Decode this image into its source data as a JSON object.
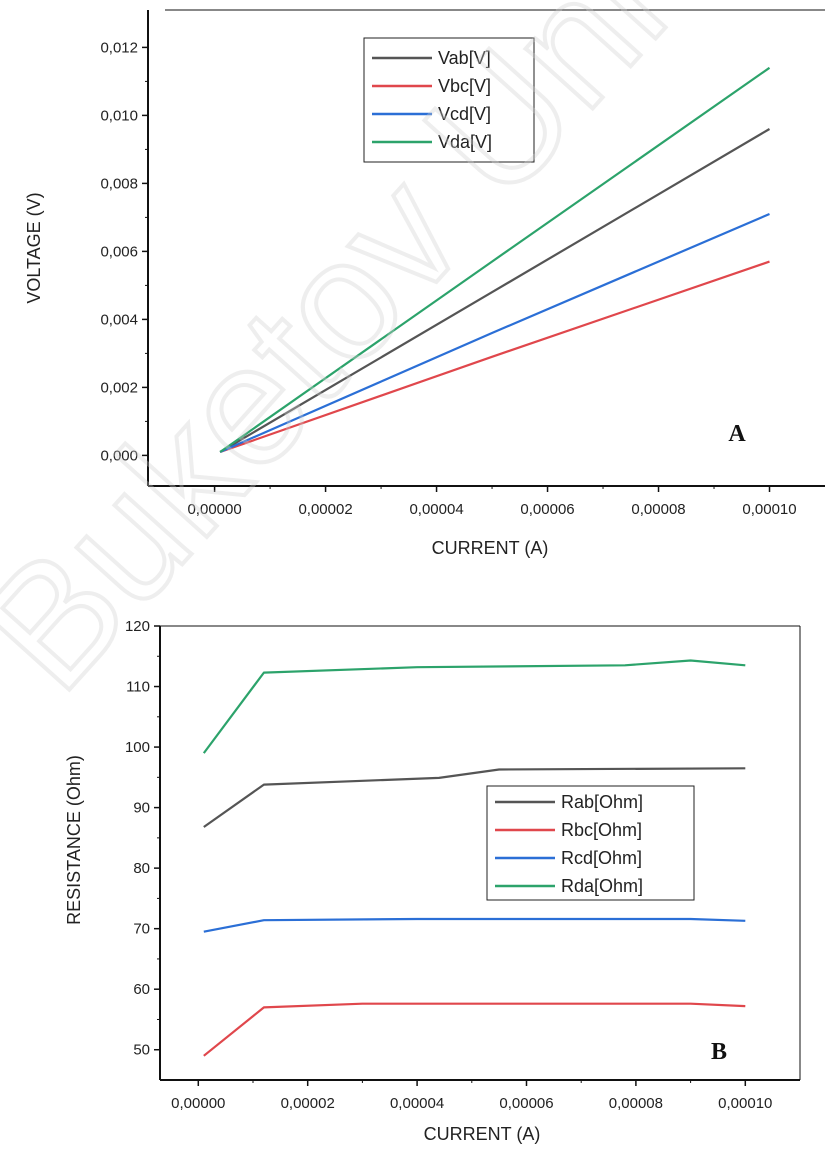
{
  "watermark": "Buketov Univer",
  "chart_data": [
    {
      "panel": "A",
      "type": "line",
      "xlabel": "CURRENT (A)",
      "ylabel": "VOLTAGE (V)",
      "xlim": [
        -1.2e-05,
        0.00011
      ],
      "ylim": [
        -0.0009,
        0.0131
      ],
      "xticks": [
        0.0,
        2e-05,
        4e-05,
        6e-05,
        8e-05,
        0.0001
      ],
      "xtick_labels": [
        "0,00000",
        "0,00002",
        "0,00004",
        "0,00006",
        "0,00008",
        "0,00010"
      ],
      "yticks": [
        0.0,
        0.002,
        0.004,
        0.006,
        0.008,
        0.01,
        0.012
      ],
      "ytick_labels": [
        "0,000",
        "0,002",
        "0,004",
        "0,006",
        "0,008",
        "0,010",
        "0,012"
      ],
      "legend_position": "top-center",
      "grid": false,
      "series": [
        {
          "name": "Vab[V]",
          "color": "#555555",
          "x": [
            1e-06,
            5e-05,
            0.0001
          ],
          "y": [
            0.0001,
            0.0048,
            0.0096
          ]
        },
        {
          "name": "Vbc[V]",
          "color": "#e0474c",
          "x": [
            1e-06,
            5e-05,
            0.0001
          ],
          "y": [
            0.0001,
            0.0029,
            0.0057
          ]
        },
        {
          "name": "Vcd[V]",
          "color": "#2b6fd6",
          "x": [
            1e-06,
            5e-05,
            0.0001
          ],
          "y": [
            0.0001,
            0.0036,
            0.0071
          ]
        },
        {
          "name": "Vda[V]",
          "color": "#2ca36b",
          "x": [
            1e-06,
            5e-05,
            0.0001
          ],
          "y": [
            0.0001,
            0.0057,
            0.0114
          ]
        }
      ]
    },
    {
      "panel": "B",
      "type": "line",
      "xlabel": "CURRENT (A)",
      "ylabel": "RESISTANCE (Ohm)",
      "xlim": [
        -7e-06,
        0.00011
      ],
      "ylim": [
        45,
        120
      ],
      "xticks": [
        0.0,
        2e-05,
        4e-05,
        6e-05,
        8e-05,
        0.0001
      ],
      "xtick_labels": [
        "0,00000",
        "0,00002",
        "0,00004",
        "0,00006",
        "0,00008",
        "0,00010"
      ],
      "yticks": [
        50,
        60,
        70,
        80,
        90,
        100,
        110,
        120
      ],
      "ytick_labels": [
        "50",
        "60",
        "70",
        "80",
        "90",
        "100",
        "110",
        "120"
      ],
      "legend_position": "center-right",
      "grid": false,
      "series": [
        {
          "name": "Rab[Ohm]",
          "color": "#555555",
          "x": [
            1e-06,
            1.2e-05,
            4.4e-05,
            5.5e-05,
            0.0001
          ],
          "y": [
            86.8,
            93.8,
            94.9,
            96.3,
            96.5
          ]
        },
        {
          "name": "Rbc[Ohm]",
          "color": "#e0474c",
          "x": [
            1e-06,
            1.2e-05,
            3e-05,
            9e-05,
            0.0001
          ],
          "y": [
            49.0,
            57.0,
            57.6,
            57.6,
            57.2
          ]
        },
        {
          "name": "Rcd[Ohm]",
          "color": "#2b6fd6",
          "x": [
            1e-06,
            1.2e-05,
            4e-05,
            9e-05,
            0.0001
          ],
          "y": [
            69.5,
            71.4,
            71.6,
            71.6,
            71.3
          ]
        },
        {
          "name": "Rda[Ohm]",
          "color": "#2ca36b",
          "x": [
            1e-06,
            1.2e-05,
            4e-05,
            7.8e-05,
            9e-05,
            0.0001
          ],
          "y": [
            99.0,
            112.3,
            113.2,
            113.5,
            114.3,
            113.5
          ]
        }
      ]
    }
  ]
}
